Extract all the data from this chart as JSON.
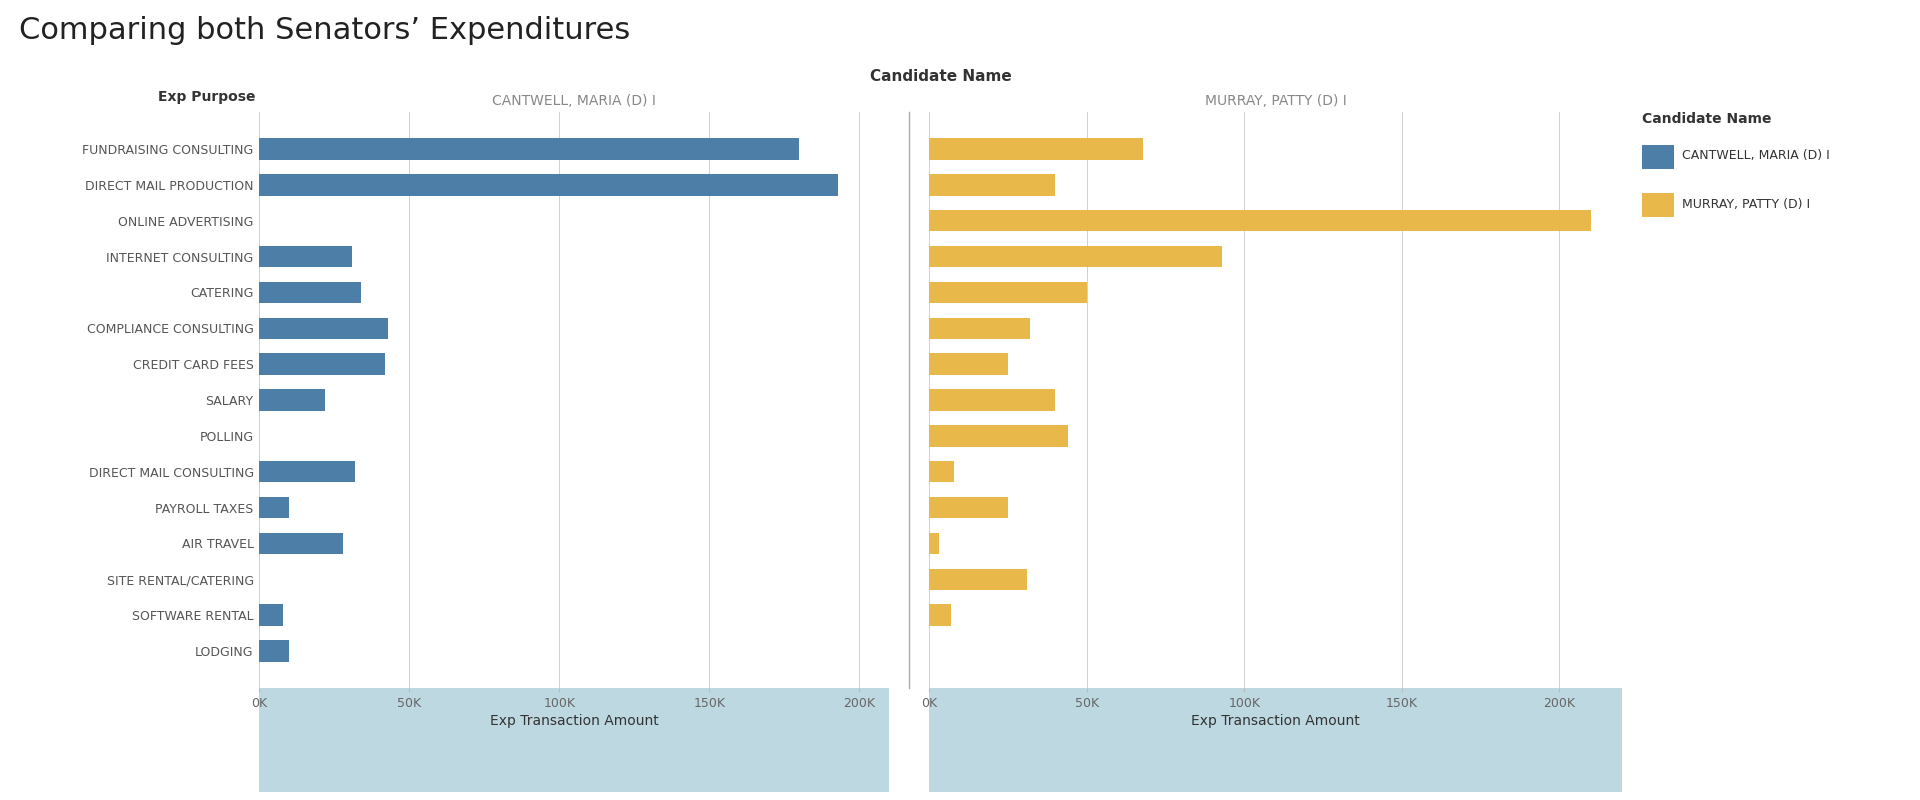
{
  "title": "Comparing both Senators’ Expenditures",
  "categories": [
    "FUNDRAISING CONSULTING",
    "DIRECT MAIL PRODUCTION",
    "ONLINE ADVERTISING",
    "INTERNET CONSULTING",
    "CATERING",
    "COMPLIANCE CONSULTING",
    "CREDIT CARD FEES",
    "SALARY",
    "POLLING",
    "DIRECT MAIL CONSULTING",
    "PAYROLL TAXES",
    "AIR TRAVEL",
    "SITE RENTAL/CATERING",
    "SOFTWARE RENTAL",
    "LODGING"
  ],
  "cantwell_values": [
    180000,
    193000,
    0,
    31000,
    34000,
    43000,
    42000,
    22000,
    0,
    32000,
    10000,
    28000,
    0,
    8000,
    10000
  ],
  "murray_values": [
    68000,
    40000,
    210000,
    93000,
    50000,
    32000,
    25000,
    40000,
    44000,
    8000,
    25000,
    3000,
    31000,
    7000,
    0
  ],
  "cantwell_color": "#4d7ea8",
  "murray_color": "#e8b84b",
  "xlabel": "Exp Transaction Amount",
  "ylabel": "Exp Purpose",
  "cantwell_label": "CANTWELL, MARIA (D) I",
  "murray_label": "MURRAY, PATTY (D) I",
  "legend_title": "Candidate Name",
  "xlim_cantwell": [
    0,
    210000
  ],
  "xlim_murray": [
    0,
    220000
  ],
  "xticks": [
    0,
    50000,
    100000,
    150000,
    200000
  ],
  "xtick_labels": [
    "0K",
    "50K",
    "100K",
    "150K",
    "200K"
  ],
  "col_header_cantwell": "CANTWELL, MARIA (D) I",
  "col_header_murray": "MURRAY, PATTY (D) I",
  "col_header_top": "Candidate Name",
  "background_color": "#ffffff",
  "xlabel_bg_color": "#a8ccd7",
  "grid_color": "#d0d0d0",
  "title_fontsize": 22,
  "cat_fontsize": 9,
  "header_fontsize": 10,
  "bar_height": 0.6,
  "divider_color": "#aaaaaa"
}
